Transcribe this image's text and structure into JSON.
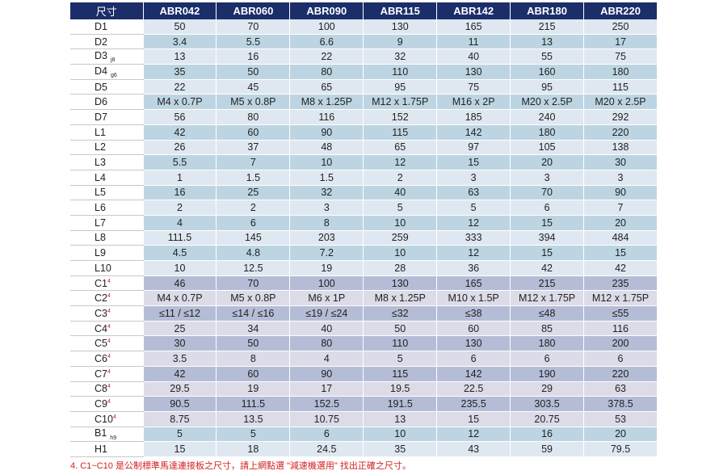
{
  "header": {
    "label": "尺寸",
    "models": [
      "ABR042",
      "ABR060",
      "ABR090",
      "ABR115",
      "ABR142",
      "ABR180",
      "ABR220"
    ]
  },
  "rows": [
    {
      "name": "D1",
      "sub": "",
      "sup": "",
      "group": "D",
      "values": [
        "50",
        "70",
        "100",
        "130",
        "165",
        "215",
        "250"
      ]
    },
    {
      "name": "D2",
      "sub": "",
      "sup": "",
      "group": "D",
      "values": [
        "3.4",
        "5.5",
        "6.6",
        "9",
        "11",
        "13",
        "17"
      ]
    },
    {
      "name": "D3",
      "sub": "j8",
      "sup": "",
      "group": "D",
      "values": [
        "13",
        "16",
        "22",
        "32",
        "40",
        "55",
        "75"
      ]
    },
    {
      "name": "D4",
      "sub": "g6",
      "sup": "",
      "group": "D",
      "values": [
        "35",
        "50",
        "80",
        "110",
        "130",
        "160",
        "180"
      ]
    },
    {
      "name": "D5",
      "sub": "",
      "sup": "",
      "group": "D",
      "values": [
        "22",
        "45",
        "65",
        "95",
        "75",
        "95",
        "115"
      ]
    },
    {
      "name": "D6",
      "sub": "",
      "sup": "",
      "group": "D",
      "values": [
        "M4 x 0.7P",
        "M5 x 0.8P",
        "M8 x 1.25P",
        "M12 x 1.75P",
        "M16 x 2P",
        "M20 x 2.5P",
        "M20 x 2.5P"
      ]
    },
    {
      "name": "D7",
      "sub": "",
      "sup": "",
      "group": "D",
      "values": [
        "56",
        "80",
        "116",
        "152",
        "185",
        "240",
        "292"
      ]
    },
    {
      "name": "L1",
      "sub": "",
      "sup": "",
      "group": "D",
      "values": [
        "42",
        "60",
        "90",
        "115",
        "142",
        "180",
        "220"
      ]
    },
    {
      "name": "L2",
      "sub": "",
      "sup": "",
      "group": "D",
      "values": [
        "26",
        "37",
        "48",
        "65",
        "97",
        "105",
        "138"
      ]
    },
    {
      "name": "L3",
      "sub": "",
      "sup": "",
      "group": "D",
      "values": [
        "5.5",
        "7",
        "10",
        "12",
        "15",
        "20",
        "30"
      ]
    },
    {
      "name": "L4",
      "sub": "",
      "sup": "",
      "group": "D",
      "values": [
        "1",
        "1.5",
        "1.5",
        "2",
        "3",
        "3",
        "3"
      ]
    },
    {
      "name": "L5",
      "sub": "",
      "sup": "",
      "group": "D",
      "values": [
        "16",
        "25",
        "32",
        "40",
        "63",
        "70",
        "90"
      ]
    },
    {
      "name": "L6",
      "sub": "",
      "sup": "",
      "group": "D",
      "values": [
        "2",
        "2",
        "3",
        "5",
        "5",
        "6",
        "7"
      ]
    },
    {
      "name": "L7",
      "sub": "",
      "sup": "",
      "group": "D",
      "values": [
        "4",
        "6",
        "8",
        "10",
        "12",
        "15",
        "20"
      ]
    },
    {
      "name": "L8",
      "sub": "",
      "sup": "",
      "group": "D",
      "values": [
        "111.5",
        "145",
        "203",
        "259",
        "333",
        "394",
        "484"
      ]
    },
    {
      "name": "L9",
      "sub": "",
      "sup": "",
      "group": "D",
      "values": [
        "4.5",
        "4.8",
        "7.2",
        "10",
        "12",
        "15",
        "15"
      ]
    },
    {
      "name": "L10",
      "sub": "",
      "sup": "",
      "group": "D",
      "values": [
        "10",
        "12.5",
        "19",
        "28",
        "36",
        "42",
        "42"
      ]
    },
    {
      "name": "C1",
      "sub": "",
      "sup": "4",
      "group": "C",
      "values": [
        "46",
        "70",
        "100",
        "130",
        "165",
        "215",
        "235"
      ]
    },
    {
      "name": "C2",
      "sub": "",
      "sup": "4",
      "group": "C",
      "values": [
        "M4 x 0.7P",
        "M5 x 0.8P",
        "M6 x 1P",
        "M8 x 1.25P",
        "M10 x 1.5P",
        "M12 x 1.75P",
        "M12 x 1.75P"
      ]
    },
    {
      "name": "C3",
      "sub": "",
      "sup": "4",
      "group": "C",
      "values": [
        "≤11 / ≤12",
        "≤14 / ≤16",
        "≤19 / ≤24",
        "≤32",
        "≤38",
        "≤48",
        "≤55"
      ]
    },
    {
      "name": "C4",
      "sub": "",
      "sup": "4",
      "group": "C",
      "values": [
        "25",
        "34",
        "40",
        "50",
        "60",
        "85",
        "116"
      ]
    },
    {
      "name": "C5",
      "sub": "",
      "sup": "4",
      "group": "C",
      "values": [
        "30",
        "50",
        "80",
        "110",
        "130",
        "180",
        "200"
      ]
    },
    {
      "name": "C6",
      "sub": "",
      "sup": "4",
      "group": "C",
      "values": [
        "3.5",
        "8",
        "4",
        "5",
        "6",
        "6",
        "6"
      ]
    },
    {
      "name": "C7",
      "sub": "",
      "sup": "4",
      "group": "C",
      "values": [
        "42",
        "60",
        "90",
        "115",
        "142",
        "190",
        "220"
      ]
    },
    {
      "name": "C8",
      "sub": "",
      "sup": "4",
      "group": "C",
      "values": [
        "29.5",
        "19",
        "17",
        "19.5",
        "22.5",
        "29",
        "63"
      ]
    },
    {
      "name": "C9",
      "sub": "",
      "sup": "4",
      "group": "C",
      "values": [
        "90.5",
        "111.5",
        "152.5",
        "191.5",
        "235.5",
        "303.5",
        "378.5"
      ]
    },
    {
      "name": "C10",
      "sub": "",
      "sup": "4",
      "group": "C",
      "values": [
        "8.75",
        "13.5",
        "10.75",
        "13",
        "15",
        "20.75",
        "53"
      ]
    },
    {
      "name": "B1",
      "sub": "h9",
      "sup": "",
      "group": "D",
      "values": [
        "5",
        "5",
        "6",
        "10",
        "12",
        "16",
        "20"
      ]
    },
    {
      "name": "H1",
      "sub": "",
      "sup": "",
      "group": "D",
      "values": [
        "15",
        "18",
        "24.5",
        "35",
        "43",
        "59",
        "79.5"
      ]
    }
  ],
  "footnote": "4. C1~C10 是公制標準馬達連接板之尺寸，請上網點選 \"減速機選用\" 找出正確之尺寸。"
}
